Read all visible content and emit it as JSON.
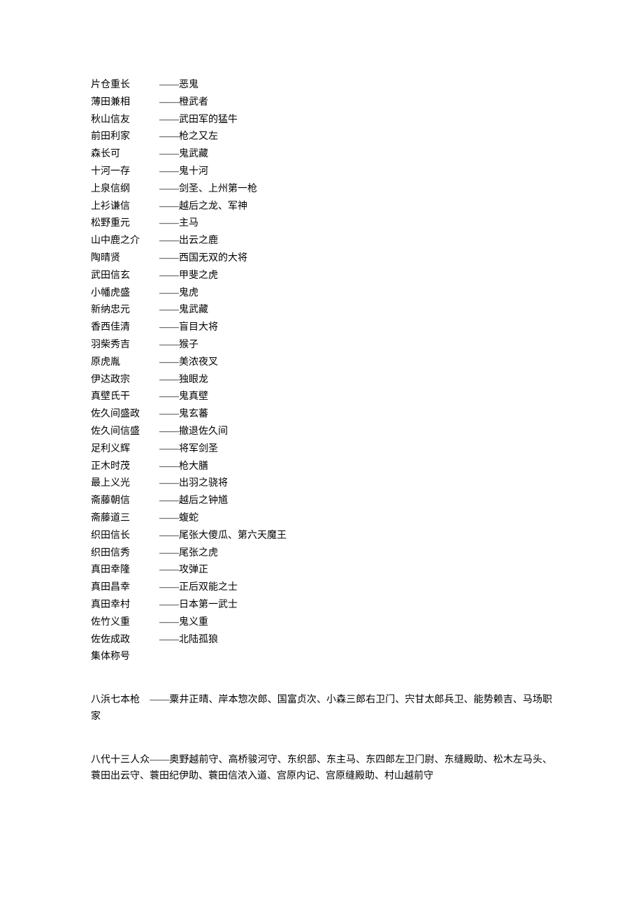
{
  "entries": [
    {
      "name": "片仓重长",
      "title": "——恶鬼"
    },
    {
      "name": "薄田兼相",
      "title": "——橙武者"
    },
    {
      "name": "秋山信友",
      "title": "——武田军的猛牛"
    },
    {
      "name": "前田利家",
      "title": "——枪之又左"
    },
    {
      "name": "森长可",
      "title": "——鬼武藏"
    },
    {
      "name": "十河一存",
      "title": "——鬼十河"
    },
    {
      "name": "上泉信纲",
      "title": "——剑圣、上州第一枪"
    },
    {
      "name": "上衫谦信",
      "title": "——越后之龙、军神"
    },
    {
      "name": "松野重元",
      "title": "——主马"
    },
    {
      "name": "山中鹿之介",
      "title": "——出云之鹿"
    },
    {
      "name": "陶晴贤",
      "title": "——西国无双的大将"
    },
    {
      "name": "武田信玄",
      "title": "——甲斐之虎"
    },
    {
      "name": "小幡虎盛",
      "title": "——鬼虎"
    },
    {
      "name": "新纳忠元",
      "title": "——鬼武藏"
    },
    {
      "name": "香西佳清",
      "title": "——盲目大将"
    },
    {
      "name": "羽柴秀吉",
      "title": "——猴子"
    },
    {
      "name": "原虎胤",
      "title": "——美浓夜叉"
    },
    {
      "name": "伊达政宗",
      "title": "——独眼龙"
    },
    {
      "name": "真壁氏干",
      "title": "——鬼真壁"
    },
    {
      "name": "佐久间盛政",
      "title": "——鬼玄蕃"
    },
    {
      "name": "佐久间信盛",
      "title": "——撤退佐久间"
    },
    {
      "name": "足利义辉",
      "title": "——将军剑圣"
    },
    {
      "name": "正木时茂",
      "title": "——枪大膳"
    },
    {
      "name": "最上义光",
      "title": "——出羽之骁将"
    },
    {
      "name": "斋藤朝信",
      "title": "——越后之钟馗"
    },
    {
      "name": "斋藤道三",
      "title": "——蝮蛇"
    },
    {
      "name": "织田信长",
      "title": "——尾张大傻瓜、第六天魔王"
    },
    {
      "name": "织田信秀",
      "title": "——尾张之虎"
    },
    {
      "name": "真田幸隆",
      "title": "——攻弹正"
    },
    {
      "name": "真田昌幸",
      "title": "——正后双能之士"
    },
    {
      "name": "真田幸村",
      "title": "——日本第一武士"
    },
    {
      "name": "佐竹义重",
      "title": "——鬼义重"
    },
    {
      "name": "佐佐成政",
      "title": "——北陆孤狼"
    }
  ],
  "section_label": "集体称号",
  "paragraphs": [
    "八浜七本枪　——粟井正晴、岸本惣次郎、国富贞次、小森三郎右卫门、宍甘太郎兵卫、能势赖吉、马场职家",
    "八代十三人众——奥野越前守、高桥骏河守、东织部、东主马、东四郎左卫门尉、东缝殿助、松木左马头、蓑田出云守、蓑田纪伊助、蓑田信浓入道、宫原内记、宫原缝殿助、村山越前守"
  ]
}
